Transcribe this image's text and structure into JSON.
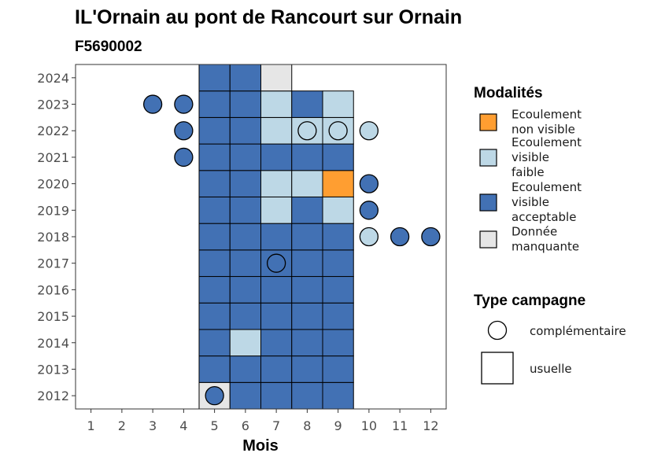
{
  "chart_data": {
    "type": "heatmap",
    "title": "IL'Ornain au pont de Rancourt sur Ornain",
    "subtitle": "F5690002",
    "xlabel": "Mois",
    "ylabel": "",
    "x_ticks": [
      "1",
      "2",
      "3",
      "4",
      "5",
      "6",
      "7",
      "8",
      "9",
      "10",
      "11",
      "12"
    ],
    "y_ticks": [
      "2012",
      "2013",
      "2014",
      "2015",
      "2016",
      "2017",
      "2018",
      "2019",
      "2020",
      "2021",
      "2022",
      "2023",
      "2024"
    ],
    "xlim": [
      0.5,
      12.5
    ],
    "ylim": [
      2011.5,
      2024.5
    ],
    "colors": {
      "non_visible": "#FF9E31",
      "faible": "#BDD8E6",
      "acceptable": "#4271B4",
      "manquante": "#E6E6E6"
    },
    "legend_modalites": {
      "title": "Modalités",
      "entries": [
        {
          "key": "non_visible",
          "lines": [
            "Ecoulement",
            "non visible"
          ]
        },
        {
          "key": "faible",
          "lines": [
            "Ecoulement",
            "visible",
            "faible"
          ]
        },
        {
          "key": "acceptable",
          "lines": [
            "Ecoulement",
            "visible",
            "acceptable"
          ]
        },
        {
          "key": "manquante",
          "lines": [
            "Donnée",
            "manquante"
          ]
        }
      ]
    },
    "legend_campagne": {
      "title": "Type campagne",
      "entries": [
        {
          "shape": "circle",
          "label": "complémentaire"
        },
        {
          "shape": "square",
          "label": "usuelle"
        }
      ]
    },
    "usuelle": {
      "2012": [
        "manquante",
        "acceptable",
        "acceptable",
        "acceptable",
        "acceptable"
      ],
      "2013": [
        "acceptable",
        "acceptable",
        "acceptable",
        "acceptable",
        "acceptable"
      ],
      "2014": [
        "acceptable",
        "faible",
        "acceptable",
        "acceptable",
        "acceptable"
      ],
      "2015": [
        "acceptable",
        "acceptable",
        "acceptable",
        "acceptable",
        "acceptable"
      ],
      "2016": [
        "acceptable",
        "acceptable",
        "acceptable",
        "acceptable",
        "acceptable"
      ],
      "2017": [
        "acceptable",
        "acceptable",
        "acceptable",
        "acceptable",
        "acceptable"
      ],
      "2018": [
        "acceptable",
        "acceptable",
        "acceptable",
        "acceptable",
        "acceptable"
      ],
      "2019": [
        "acceptable",
        "acceptable",
        "faible",
        "acceptable",
        "faible"
      ],
      "2020": [
        "acceptable",
        "acceptable",
        "faible",
        "faible",
        "non_visible"
      ],
      "2021": [
        "acceptable",
        "acceptable",
        "acceptable",
        "acceptable",
        "acceptable"
      ],
      "2022": [
        "acceptable",
        "acceptable",
        "faible",
        "faible",
        "faible"
      ],
      "2023": [
        "acceptable",
        "acceptable",
        "faible",
        "acceptable",
        "faible"
      ],
      "2024": [
        "acceptable",
        "acceptable",
        "manquante"
      ]
    },
    "usuelle_months": [
      5,
      6,
      7,
      8,
      9
    ],
    "complementaire": [
      {
        "month": 3,
        "year": 2023,
        "m": "acceptable"
      },
      {
        "month": 4,
        "year": 2023,
        "m": "acceptable"
      },
      {
        "month": 4,
        "year": 2022,
        "m": "acceptable"
      },
      {
        "month": 4,
        "year": 2021,
        "m": "acceptable"
      },
      {
        "month": 8,
        "year": 2022,
        "m": "faible"
      },
      {
        "month": 9,
        "year": 2022,
        "m": "faible"
      },
      {
        "month": 10,
        "year": 2022,
        "m": "faible"
      },
      {
        "month": 10,
        "year": 2020,
        "m": "acceptable"
      },
      {
        "month": 10,
        "year": 2019,
        "m": "acceptable"
      },
      {
        "month": 10,
        "year": 2018,
        "m": "faible"
      },
      {
        "month": 11,
        "year": 2018,
        "m": "acceptable"
      },
      {
        "month": 12,
        "year": 2018,
        "m": "acceptable"
      },
      {
        "month": 7,
        "year": 2017,
        "m": "acceptable"
      },
      {
        "month": 5,
        "year": 2012,
        "m": "acceptable"
      }
    ]
  }
}
